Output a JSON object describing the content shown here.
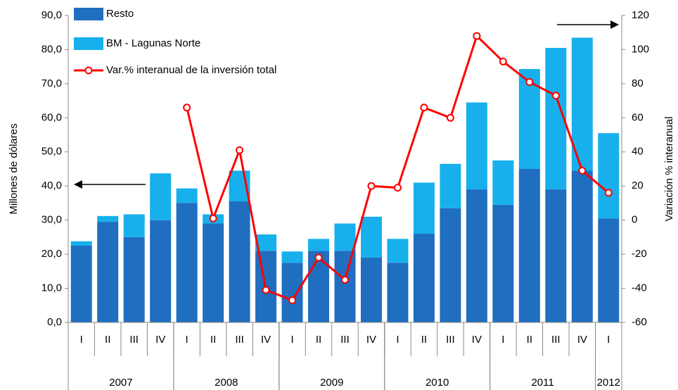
{
  "chart_data": {
    "type": "stacked_bar_line",
    "categories": [
      "I",
      "II",
      "III",
      "IV",
      "I",
      "II",
      "III",
      "IV",
      "I",
      "II",
      "III",
      "IV",
      "I",
      "II",
      "III",
      "IV",
      "I",
      "II",
      "III",
      "IV",
      "I"
    ],
    "groups": [
      "2007",
      "2008",
      "2009",
      "2010",
      "2011",
      "2012"
    ],
    "series": [
      {
        "name": "Resto",
        "color": "#1f6ebf",
        "type": "bar",
        "values": [
          22.5,
          29.5,
          25,
          30,
          35,
          29,
          35.5,
          21,
          17.5,
          21,
          21,
          19,
          17.5,
          26,
          33.5,
          39,
          34.5,
          45,
          39,
          44.5,
          30.5
        ]
      },
      {
        "name": "BM - Lagunas Norte",
        "color": "#17b0ec",
        "type": "bar",
        "values": [
          1.3,
          1.7,
          6.7,
          13.7,
          4.3,
          2.7,
          9,
          4.8,
          3.3,
          3.5,
          8,
          12,
          7,
          15,
          13,
          25.5,
          13,
          29.3,
          41.5,
          39,
          25
        ]
      },
      {
        "name": "Var.% interanual de la inversión total",
        "color": "#ff0000",
        "type": "line",
        "axis": "y2",
        "values": [
          null,
          null,
          null,
          null,
          66,
          1,
          41,
          -41,
          -47,
          -22,
          -35,
          20,
          19,
          66,
          60,
          108,
          93,
          81,
          73,
          29,
          16
        ]
      }
    ],
    "y_label": "Millones de dólares",
    "y2_label": "Variación % interanual",
    "ylim": [
      0,
      90
    ],
    "yticks": [
      {
        "value": 0,
        "label": "0,0"
      },
      {
        "value": 10,
        "label": "10,0"
      },
      {
        "value": 20,
        "label": "20,0"
      },
      {
        "value": 30,
        "label": "30,0"
      },
      {
        "value": 40,
        "label": "40,0"
      },
      {
        "value": 50,
        "label": "50,0"
      },
      {
        "value": 60,
        "label": "60,0"
      },
      {
        "value": 70,
        "label": "70,0"
      },
      {
        "value": 80,
        "label": "80,0"
      },
      {
        "value": 90,
        "label": "90,0"
      }
    ],
    "y2lim": [
      -60,
      120
    ],
    "y2ticks": [
      -60,
      -40,
      -20,
      0,
      20,
      40,
      60,
      80,
      100,
      120
    ]
  }
}
